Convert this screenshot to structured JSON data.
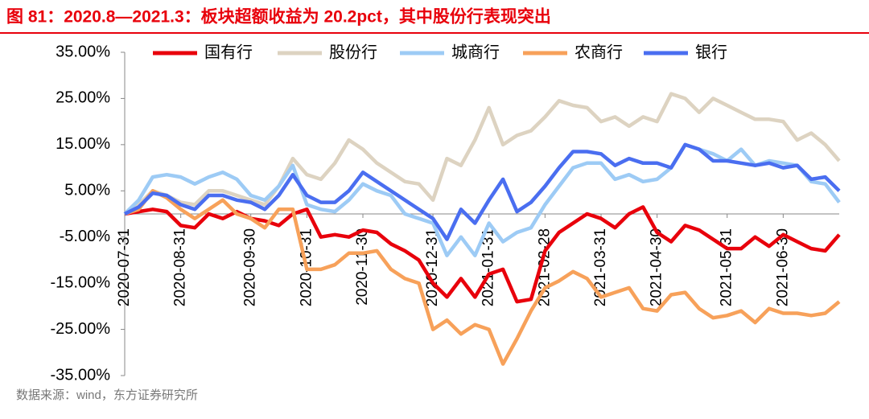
{
  "chart_data": {
    "type": "line",
    "title": "图 81：2020.8—2021.3：板块超额收益为 20.2pct，其中股份行表现突出",
    "source": "数据来源：wind，东方证券研究所",
    "categories": [
      "2020-07-31",
      null,
      null,
      null,
      "2020-08-31",
      null,
      null,
      null,
      null,
      "2020-09-30",
      null,
      null,
      null,
      "2020-10-31",
      null,
      null,
      null,
      "2020-11-30",
      null,
      null,
      null,
      null,
      "2020-12-31",
      null,
      null,
      null,
      "2021-01-31",
      null,
      null,
      null,
      "2021-02-28",
      null,
      null,
      null,
      "2021-03-31",
      null,
      null,
      null,
      "2021-04-30",
      null,
      null,
      null,
      null,
      "2021-05-31",
      null,
      null,
      null,
      "2021-06-30",
      null,
      null,
      null,
      null
    ],
    "series": [
      {
        "name": "国有行",
        "color": "#e8000b",
        "values": [
          0,
          0.5,
          1,
          0.5,
          -2.5,
          -3,
          0,
          -1,
          0.5,
          -1,
          -1.5,
          -2.5,
          0,
          1,
          -5,
          -4.5,
          -5,
          -3.5,
          -4,
          -6.5,
          -8,
          -10,
          -15,
          -18,
          -14,
          -18,
          -13,
          -12,
          -19,
          -18.5,
          -8,
          -4,
          -2,
          0,
          -1,
          -3,
          0,
          1.5,
          -4,
          -6,
          -2.5,
          -3.5,
          -5.5,
          -7.5,
          -7.5,
          -5,
          -7,
          -4.5,
          -6,
          -7.5,
          -8,
          -4.5
        ]
      },
      {
        "name": "股份行",
        "color": "#ddd3c1",
        "values": [
          0,
          2,
          5,
          4,
          2.5,
          2,
          5,
          5,
          4,
          3,
          2,
          6,
          12,
          8.5,
          7.5,
          11,
          16,
          14,
          11,
          9,
          7,
          6.5,
          3,
          12,
          10.5,
          16,
          23,
          15,
          17,
          18,
          21,
          24.5,
          23.5,
          23,
          20,
          21,
          19,
          21,
          20,
          26,
          25,
          22,
          25,
          23.5,
          22,
          20.5,
          20.5,
          20,
          16,
          17.5,
          15,
          11.5
        ]
      },
      {
        "name": "城商行",
        "color": "#9dcbf5",
        "values": [
          0,
          3,
          8,
          8.5,
          8,
          6.5,
          8,
          9,
          7.5,
          4,
          3,
          6,
          10.5,
          2,
          1,
          0.5,
          3,
          6.5,
          5,
          4,
          0,
          -1,
          -2,
          -9,
          -5,
          -9,
          -2,
          -6,
          -4,
          -3,
          2,
          6,
          10,
          11,
          11,
          7.5,
          8.5,
          7,
          7.5,
          10,
          15,
          14,
          13,
          11.5,
          14,
          10.5,
          11.5,
          11,
          10.5,
          7,
          6.5,
          2.5
        ]
      },
      {
        "name": "农商行",
        "color": "#f7a15a",
        "values": [
          0,
          1,
          5,
          3.5,
          1,
          -1,
          1,
          3,
          0,
          -1,
          -3,
          1,
          1,
          -12,
          -12,
          -11,
          -8.5,
          -8.5,
          -8,
          -12,
          -14,
          -15,
          -25,
          -23,
          -26,
          -24,
          -25,
          -32.5,
          -27,
          -21,
          -16,
          -14.5,
          -12.5,
          -14,
          -18,
          -17,
          -16,
          -20.5,
          -21,
          -17.5,
          -17,
          -20.5,
          -22.5,
          -22,
          -21,
          -23.5,
          -20.5,
          -21.5,
          -21.5,
          -22,
          -21.5,
          -19
        ]
      },
      {
        "name": "银行",
        "color": "#4a6ef0",
        "values": [
          0,
          1.5,
          4.5,
          4,
          2,
          1,
          4,
          4,
          3,
          2.5,
          1,
          4,
          8.5,
          4,
          2.5,
          2.5,
          5,
          9,
          7,
          5,
          3,
          1,
          -1,
          -5.5,
          1,
          -2,
          3,
          7.5,
          0.5,
          2.5,
          6,
          10,
          13.5,
          13.5,
          13,
          10.5,
          12,
          11,
          11,
          10,
          15,
          14,
          11.5,
          11.5,
          11,
          10.5,
          11,
          10,
          10.5,
          7.5,
          8,
          5
        ]
      }
    ],
    "ylim": [
      -35,
      35
    ],
    "yticks": [
      {
        "value": 35,
        "label": "35.00%"
      },
      {
        "value": 25,
        "label": "25.00%"
      },
      {
        "value": 15,
        "label": "15.00%"
      },
      {
        "value": 5,
        "label": "5.00%"
      },
      {
        "value": -5,
        "label": "-5.00%"
      },
      {
        "value": -15,
        "label": "-15.00%"
      },
      {
        "value": -25,
        "label": "-25.00%"
      },
      {
        "value": -35,
        "label": "-35.00%"
      }
    ],
    "legend": "top"
  }
}
